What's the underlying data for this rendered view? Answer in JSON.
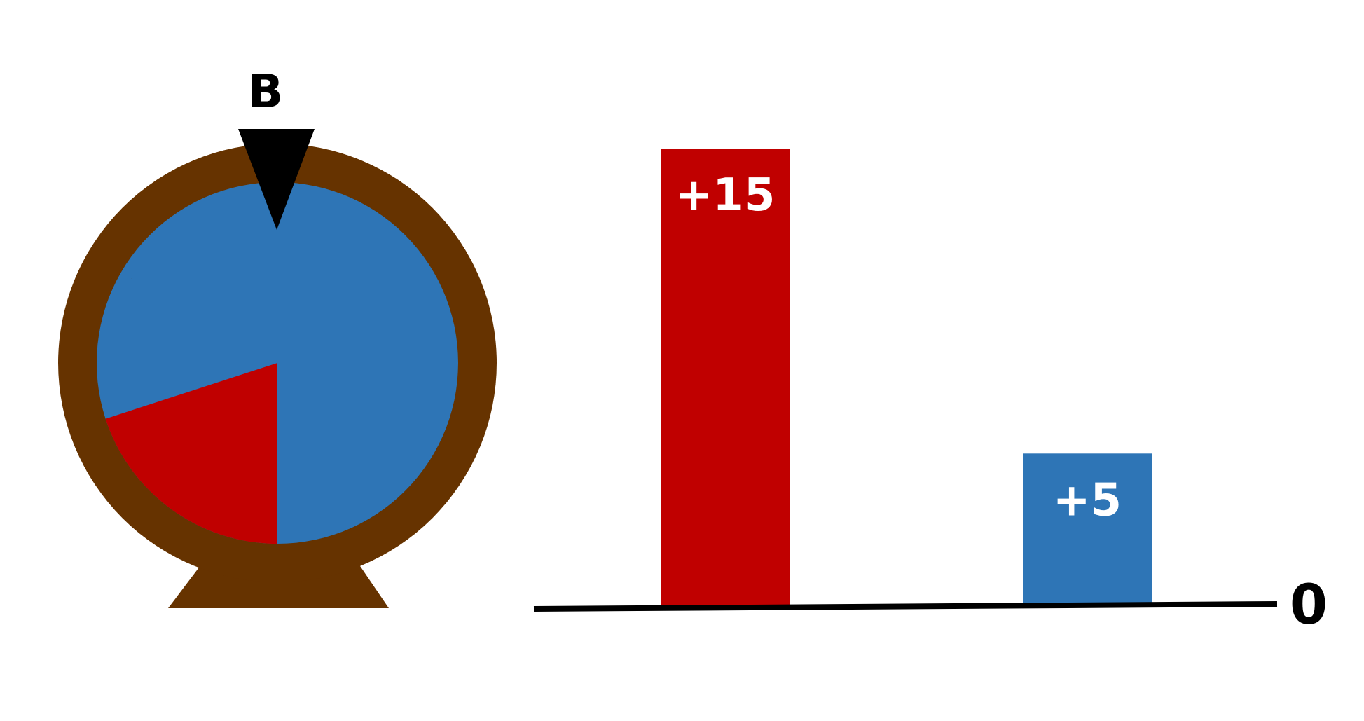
{
  "wheel": {
    "pointer_label": "B",
    "rim_color": "#663300",
    "face_color": "#2E75B6",
    "pointer_color": "#000000",
    "wedge_color": "#C00000",
    "segments": 12
  },
  "chart_data": {
    "type": "bar",
    "categories": [
      "red",
      "blue"
    ],
    "values": [
      15,
      5
    ],
    "data_labels": [
      "+15",
      "+5"
    ],
    "colors": [
      "#C00000",
      "#2E75B6"
    ],
    "baseline_label": "0",
    "title": "",
    "xlabel": "",
    "ylabel": "",
    "ylim": [
      0,
      15
    ],
    "grid": false,
    "legend": "none"
  }
}
